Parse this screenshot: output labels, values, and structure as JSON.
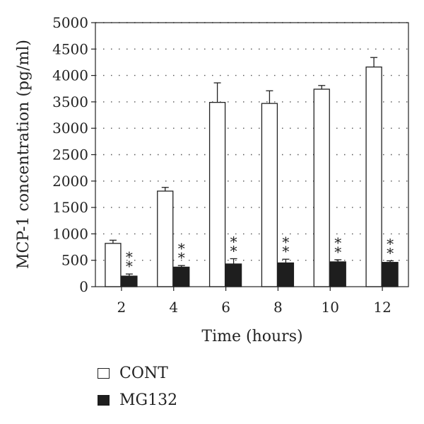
{
  "chart_data": {
    "type": "bar",
    "title": "",
    "xlabel": "Time (hours)",
    "ylabel": "MCP-1 concentration (pg/ml)",
    "categories": [
      "2",
      "4",
      "6",
      "8",
      "10",
      "12"
    ],
    "ylim": [
      0,
      5000
    ],
    "yticks": [
      0,
      500,
      1000,
      1500,
      2000,
      2500,
      3000,
      3500,
      4000,
      4500,
      5000
    ],
    "grid": true,
    "legend_position": "bottom-left",
    "series": [
      {
        "name": "CONT",
        "values": [
          820,
          1810,
          3490,
          3470,
          3740,
          4160
        ],
        "errors": [
          60,
          70,
          370,
          240,
          70,
          180
        ],
        "fill": "#ffffff",
        "stroke": "#222222"
      },
      {
        "name": "MG132",
        "values": [
          200,
          370,
          430,
          450,
          470,
          460
        ],
        "errors": [
          40,
          30,
          100,
          70,
          40,
          30
        ],
        "fill": "#1e1e1e",
        "stroke": "#1e1e1e",
        "annotation": "**"
      }
    ]
  }
}
